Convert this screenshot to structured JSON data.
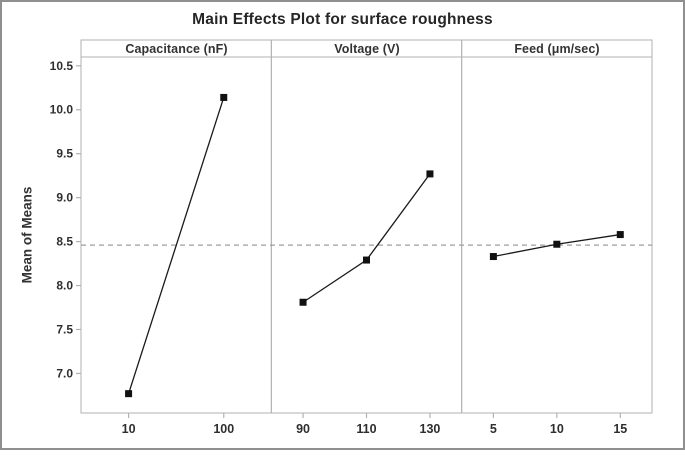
{
  "chart_data": {
    "type": "line",
    "subtype": "main-effects-plot",
    "title": "Main Effects Plot for surface roughness",
    "ylabel": "Mean of Means",
    "ylim": [
      6.55,
      10.6
    ],
    "yticks": [
      7.0,
      7.5,
      8.0,
      8.5,
      9.0,
      9.5,
      10.0,
      10.5
    ],
    "mean_reference_line": 8.46,
    "grid": false,
    "legend": "none",
    "panels": [
      {
        "label": "Capacitance (nF)",
        "categories": [
          "10",
          "100"
        ],
        "values": [
          6.77,
          10.14
        ]
      },
      {
        "label": "Voltage (V)",
        "categories": [
          "90",
          "110",
          "130"
        ],
        "values": [
          7.81,
          8.29,
          9.27
        ]
      },
      {
        "label": "Feed (μm/sec)",
        "categories": [
          "5",
          "10",
          "15"
        ],
        "values": [
          8.33,
          8.47,
          8.58
        ]
      }
    ],
    "colors": {
      "series_line": "#1a1a1a",
      "marker": "#111111",
      "panel_border": "#b2b2b2",
      "mean_line": "#9e9e9e",
      "tick_text": "#2e2e2e",
      "outer_frame": "#8f8f8f"
    }
  }
}
